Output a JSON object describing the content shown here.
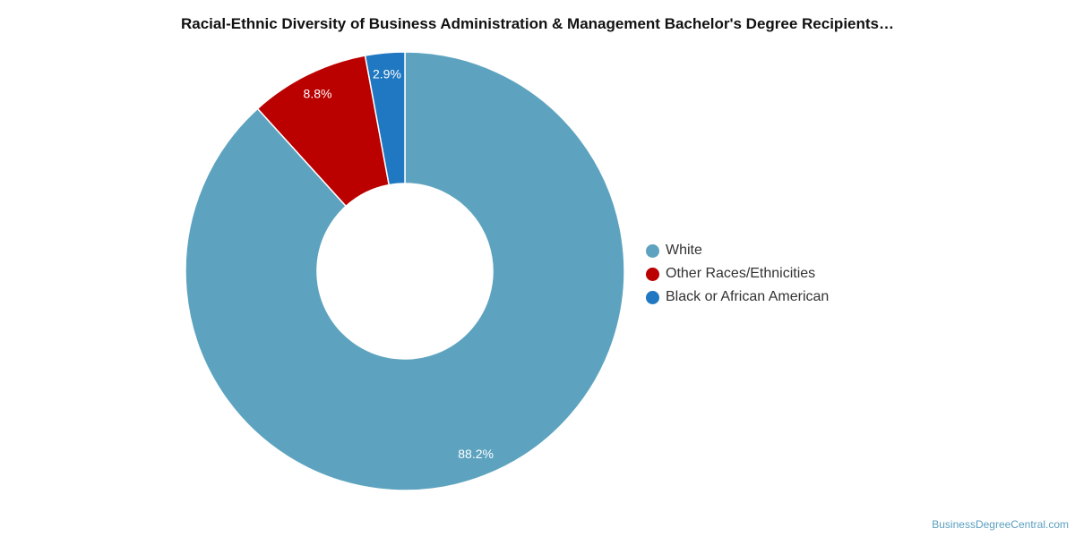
{
  "chart_data": {
    "type": "pie",
    "title": "Racial-Ethnic Diversity of Business Administration & Management Bachelor's Degree Recipients…",
    "categories": [
      "White",
      "Other Races/Ethnicities",
      "Black or African American"
    ],
    "values": [
      88.2,
      8.8,
      2.9
    ],
    "data_labels": [
      "88.2%",
      "8.8%",
      "2.9%"
    ],
    "colors": [
      "#5da3bf",
      "#bb0000",
      "#1f78c1"
    ],
    "legend_position": "right",
    "donut": true
  },
  "credit": "BusinessDegreeCentral.com"
}
